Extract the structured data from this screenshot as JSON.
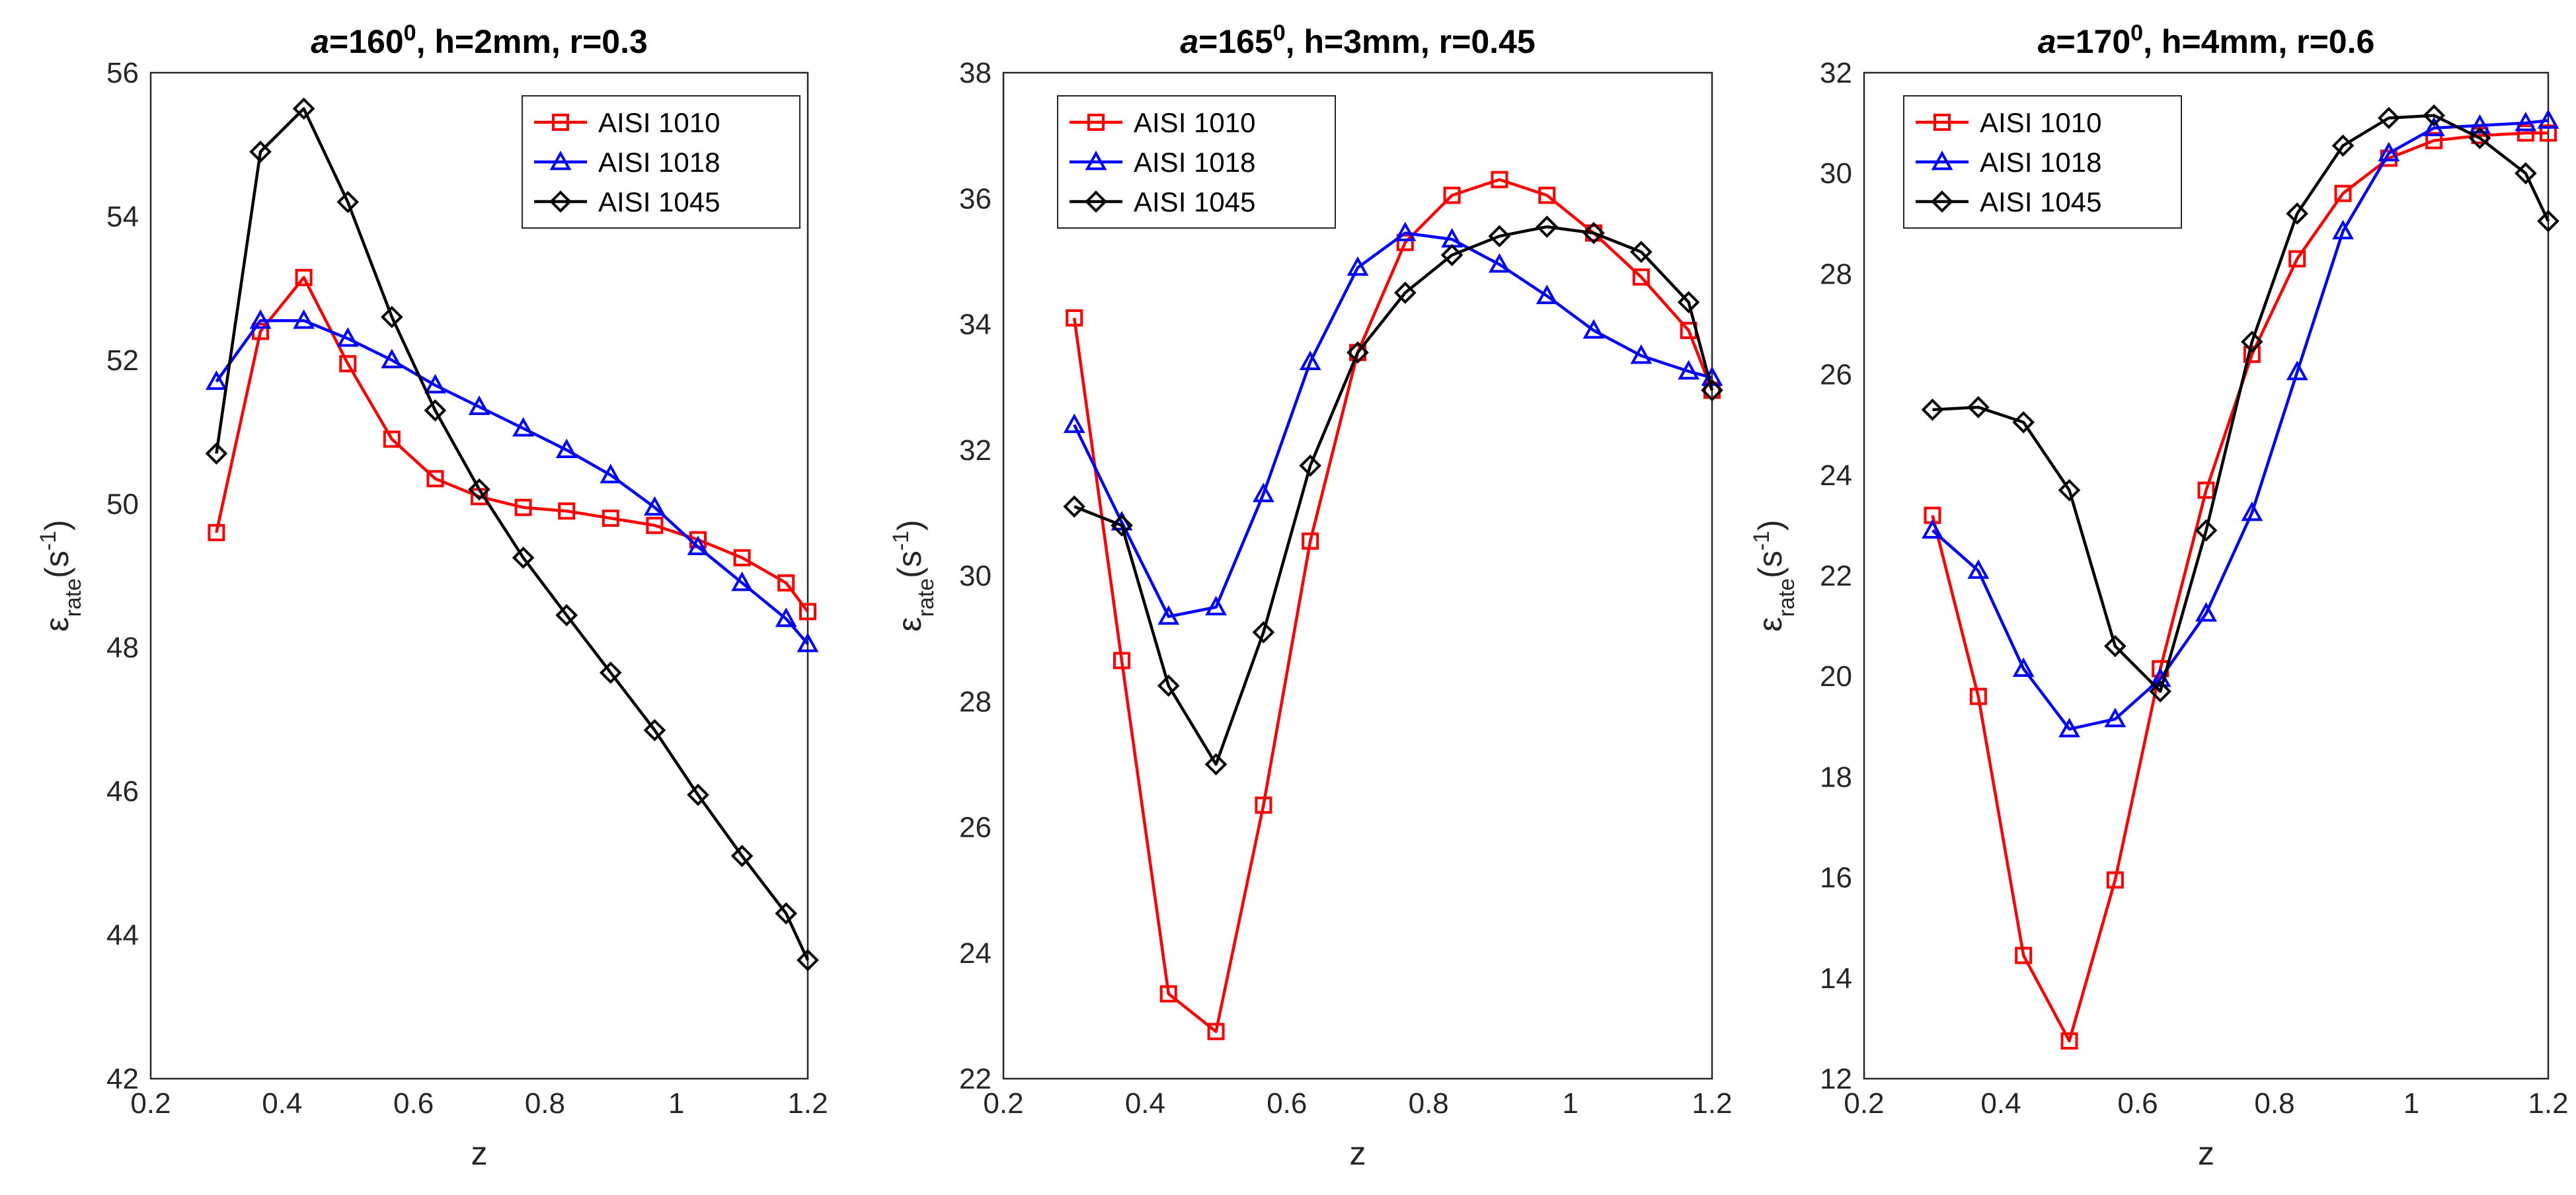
{
  "colors": {
    "AISI 1010": "#ff0000",
    "AISI 1018": "#0000ff",
    "AISI 1045": "#000000"
  },
  "chart_data": [
    {
      "type": "line",
      "title": {
        "a_prefix": "a",
        "main": "=160",
        "sup": "0",
        "rest": ", h=2mm,  r=0.3"
      },
      "xlabel": "z",
      "ylabel": {
        "eps": "ε",
        "sub": "rate",
        "mid": "(s",
        "sup": "-1",
        "end": ")"
      },
      "xlim": [
        0.2,
        1.2
      ],
      "ylim": [
        42,
        56
      ],
      "xticks": [
        0.2,
        0.4,
        0.6,
        0.8,
        1,
        1.2
      ],
      "xtick_labels": [
        "0.2",
        "0.4",
        "0.6",
        "0.8",
        "1",
        "1.2"
      ],
      "yticks": [
        42,
        44,
        46,
        48,
        50,
        52,
        54,
        56
      ],
      "ytick_labels": [
        "42",
        "44",
        "46",
        "48",
        "50",
        "52",
        "54",
        "56"
      ],
      "grid": true,
      "legend_position": "top-right",
      "x": [
        0.3,
        0.367,
        0.433,
        0.5,
        0.567,
        0.633,
        0.7,
        0.767,
        0.833,
        0.9,
        0.967,
        1.033,
        1.1,
        1.167,
        1.2
      ],
      "series": [
        {
          "name": "AISI 1010",
          "marker": "square",
          "values": [
            49.6,
            52.4,
            53.15,
            51.95,
            50.9,
            50.35,
            50.1,
            49.95,
            49.9,
            49.8,
            49.7,
            49.5,
            49.25,
            48.9,
            48.5
          ]
        },
        {
          "name": "AISI 1018",
          "marker": "triangle",
          "values": [
            51.7,
            52.55,
            52.55,
            52.3,
            52.0,
            51.65,
            51.35,
            51.05,
            50.75,
            50.4,
            49.95,
            49.4,
            48.9,
            48.4,
            48.05
          ]
        },
        {
          "name": "AISI 1045",
          "marker": "diamond",
          "values": [
            50.7,
            54.9,
            55.5,
            54.2,
            52.6,
            51.3,
            50.2,
            49.25,
            48.45,
            47.65,
            46.85,
            45.95,
            45.1,
            44.3,
            43.65
          ]
        }
      ]
    },
    {
      "type": "line",
      "title": {
        "a_prefix": "a",
        "main": "=165",
        "sup": "0",
        "rest": ", h=3mm,  r=0.45"
      },
      "xlabel": "z",
      "ylabel": {
        "eps": "ε",
        "sub": "rate",
        "mid": "(s",
        "sup": "-1",
        "end": ")"
      },
      "xlim": [
        0.2,
        1.2
      ],
      "ylim": [
        22,
        38
      ],
      "xticks": [
        0.2,
        0.4,
        0.6,
        0.8,
        1,
        1.2
      ],
      "xtick_labels": [
        "0.2",
        "0.4",
        "0.6",
        "0.8",
        "1",
        "1.2"
      ],
      "yticks": [
        22,
        24,
        26,
        28,
        30,
        32,
        34,
        36,
        38
      ],
      "ytick_labels": [
        "22",
        "24",
        "26",
        "28",
        "30",
        "32",
        "34",
        "36",
        "38"
      ],
      "grid": true,
      "legend_position": "top-left",
      "x": [
        0.3,
        0.367,
        0.433,
        0.5,
        0.567,
        0.633,
        0.7,
        0.767,
        0.833,
        0.9,
        0.967,
        1.033,
        1.1,
        1.167,
        1.2
      ],
      "series": [
        {
          "name": "AISI 1010",
          "marker": "square",
          "values": [
            34.1,
            28.65,
            23.35,
            22.75,
            26.35,
            30.55,
            33.55,
            35.3,
            36.05,
            36.3,
            36.05,
            35.45,
            34.75,
            33.9,
            32.95
          ]
        },
        {
          "name": "AISI 1018",
          "marker": "triangle",
          "values": [
            32.4,
            30.85,
            29.35,
            29.5,
            31.3,
            33.4,
            34.9,
            35.45,
            35.35,
            34.95,
            34.45,
            33.9,
            33.5,
            33.25,
            33.15
          ]
        },
        {
          "name": "AISI 1045",
          "marker": "diamond",
          "values": [
            31.1,
            30.8,
            28.25,
            27.0,
            29.1,
            31.75,
            33.55,
            34.5,
            35.1,
            35.4,
            35.55,
            35.45,
            35.15,
            34.35,
            32.95
          ]
        }
      ]
    },
    {
      "type": "line",
      "title": {
        "a_prefix": "a",
        "main": "=170",
        "sup": "0",
        "rest": ", h=4mm,  r=0.6"
      },
      "xlabel": "z",
      "ylabel": {
        "eps": "ε",
        "sub": "rate",
        "mid": "(s",
        "sup": "-1",
        "end": ")"
      },
      "xlim": [
        0.2,
        1.2
      ],
      "ylim": [
        12,
        32
      ],
      "xticks": [
        0.2,
        0.4,
        0.6,
        0.8,
        1,
        1.2
      ],
      "xtick_labels": [
        "0.2",
        "0.4",
        "0.6",
        "0.8",
        "1",
        "1.2"
      ],
      "yticks": [
        12,
        14,
        16,
        18,
        20,
        22,
        24,
        26,
        28,
        30,
        32
      ],
      "ytick_labels": [
        "12",
        "14",
        "16",
        "18",
        "20",
        "22",
        "24",
        "26",
        "28",
        "30",
        "32"
      ],
      "grid": true,
      "legend_position": "top-left",
      "x": [
        0.3,
        0.367,
        0.433,
        0.5,
        0.567,
        0.633,
        0.7,
        0.767,
        0.833,
        0.9,
        0.967,
        1.033,
        1.1,
        1.167,
        1.2
      ],
      "series": [
        {
          "name": "AISI 1010",
          "marker": "square",
          "values": [
            23.2,
            19.6,
            14.45,
            12.75,
            15.95,
            20.15,
            23.7,
            26.4,
            28.3,
            29.6,
            30.3,
            30.65,
            30.75,
            30.8,
            30.8
          ]
        },
        {
          "name": "AISI 1018",
          "marker": "triangle",
          "values": [
            22.9,
            22.1,
            20.15,
            18.95,
            19.15,
            19.95,
            21.25,
            23.25,
            26.05,
            28.85,
            30.4,
            30.9,
            30.95,
            31.0,
            31.05
          ]
        },
        {
          "name": "AISI 1045",
          "marker": "diamond",
          "values": [
            25.3,
            25.35,
            25.05,
            23.7,
            20.6,
            19.7,
            22.9,
            26.65,
            29.2,
            30.55,
            31.1,
            31.15,
            30.7,
            30.0,
            29.05
          ]
        }
      ]
    }
  ]
}
